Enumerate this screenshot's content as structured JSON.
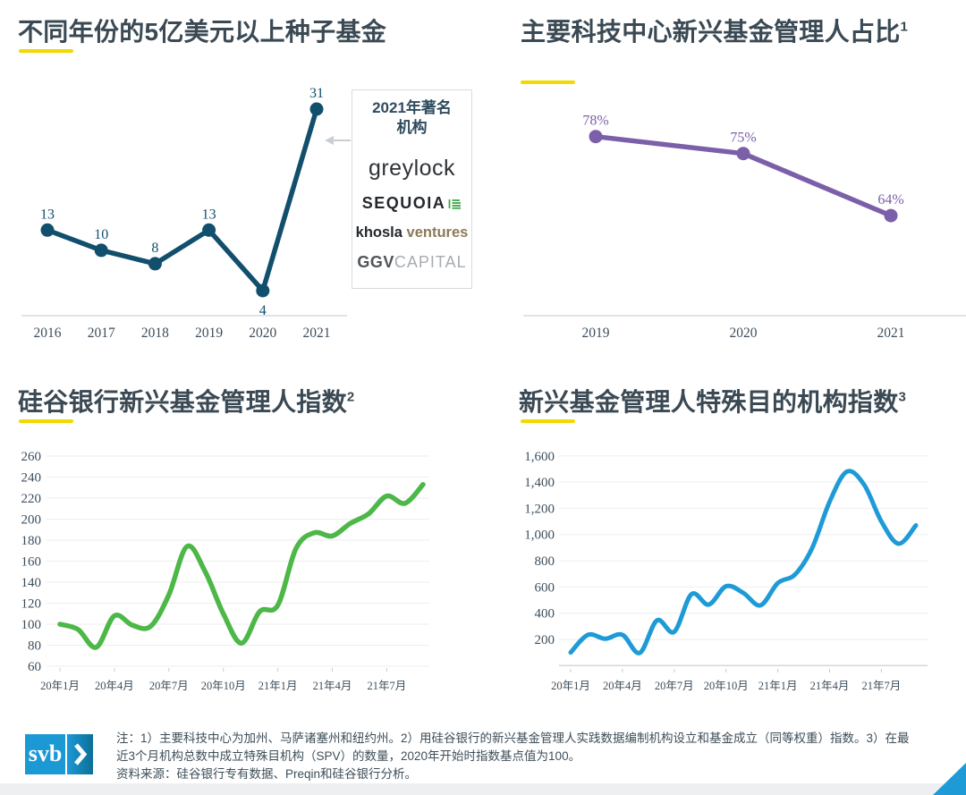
{
  "page": {
    "background": "#ffffff",
    "accent_yellow": "#F2D900",
    "title_color": "#3A4953"
  },
  "chart_data": [
    {
      "id": "seed-funds",
      "type": "line",
      "title": "不同年份的5亿美元以上种子基金",
      "title_sup": "",
      "categories": [
        "2016",
        "2017",
        "2018",
        "2019",
        "2020",
        "2021"
      ],
      "values": [
        13,
        10,
        8,
        13,
        4,
        31
      ],
      "data_labels": [
        "13",
        "10",
        "8",
        "13",
        "4",
        "31"
      ],
      "label_positions": [
        "above",
        "above",
        "above",
        "above",
        "below",
        "above"
      ],
      "color": "#114F6D",
      "ylim": [
        0,
        33
      ],
      "grid": false,
      "legend": "none"
    },
    {
      "id": "tech-hubs",
      "type": "line",
      "title": "主要科技中心新兴基金管理人占比",
      "title_sup": "1",
      "categories": [
        "2019",
        "2020",
        "2021"
      ],
      "values": [
        78,
        75,
        64
      ],
      "data_labels": [
        "78%",
        "75%",
        "64%"
      ],
      "label_positions": [
        "above",
        "above",
        "above"
      ],
      "color": "#7B5FA8",
      "ylim": [
        45,
        80
      ],
      "unit": "%",
      "grid": false,
      "legend": "none"
    },
    {
      "id": "svb-index",
      "type": "line",
      "title": "硅谷银行新兴基金管理人指数",
      "title_sup": "2",
      "x_tick_labels": [
        "20年1月",
        "20年4月",
        "20年7月",
        "20年10月",
        "21年1月",
        "21年4月",
        "21年7月"
      ],
      "x_points_per_tick": 3,
      "values": [
        100,
        95,
        78,
        108,
        99,
        98,
        128,
        174,
        150,
        110,
        82,
        112,
        118,
        172,
        187,
        184,
        196,
        205,
        222,
        215,
        233
      ],
      "values_note": "monthly, estimated from curve, Jan 2020 - Sep 2021, index base 100",
      "yticks": [
        60,
        80,
        100,
        120,
        140,
        160,
        180,
        200,
        220,
        240,
        260
      ],
      "ytick_labels": [
        "60",
        "80",
        "100",
        "120",
        "140",
        "160",
        "180",
        "200",
        "220",
        "240",
        "260"
      ],
      "ylim": [
        60,
        260
      ],
      "color": "#4DB748",
      "grid": true,
      "legend": "none"
    },
    {
      "id": "spv-index",
      "type": "line",
      "title": "新兴基金管理人特殊目的机构指数",
      "title_sup": "3",
      "x_tick_labels": [
        "20年1月",
        "20年4月",
        "20年7月",
        "20年10月",
        "21年1月",
        "21年4月",
        "21年7月"
      ],
      "x_points_per_tick": 3,
      "values": [
        100,
        235,
        205,
        235,
        97,
        345,
        258,
        545,
        465,
        605,
        555,
        460,
        630,
        695,
        900,
        1250,
        1480,
        1380,
        1100,
        930,
        1070
      ],
      "values_note": "monthly, estimated from curve, Jan 2020 - Sep 2021",
      "yticks": [
        200,
        400,
        600,
        800,
        1000,
        1200,
        1400,
        1600
      ],
      "ytick_labels": [
        "200",
        "400",
        "600",
        "800",
        "1,000",
        "1,200",
        "1,400",
        "1,600"
      ],
      "ylim": [
        0,
        1600
      ],
      "color": "#1E9BD7",
      "grid": true,
      "legend": "none"
    }
  ],
  "callout_box": {
    "title_line1": "2021年著名",
    "title_line2": "机构",
    "logos": {
      "greylock": "greylock",
      "sequoia": "SEQUOIA",
      "khosla_bold": "khosla",
      "khosla_light": "ventures",
      "ggv_bold": "GGV",
      "ggv_light": "CAPITAL"
    }
  },
  "footer": {
    "logo_text": "svb",
    "note_line1": "注：1）主要科技中心为加州、马萨诸塞州和纽约州。2）用硅谷银行的新兴基金管理人实践数据编制机构设立和基金成立（同等权重）指数。3）在最",
    "note_line2": "近3个月机构总数中成立特殊目机构（SPV）的数量，2020年开始时指数基点值为100。",
    "note_line3": "资料来源：硅谷银行专有数据、Preqin和硅谷银行分析。"
  }
}
